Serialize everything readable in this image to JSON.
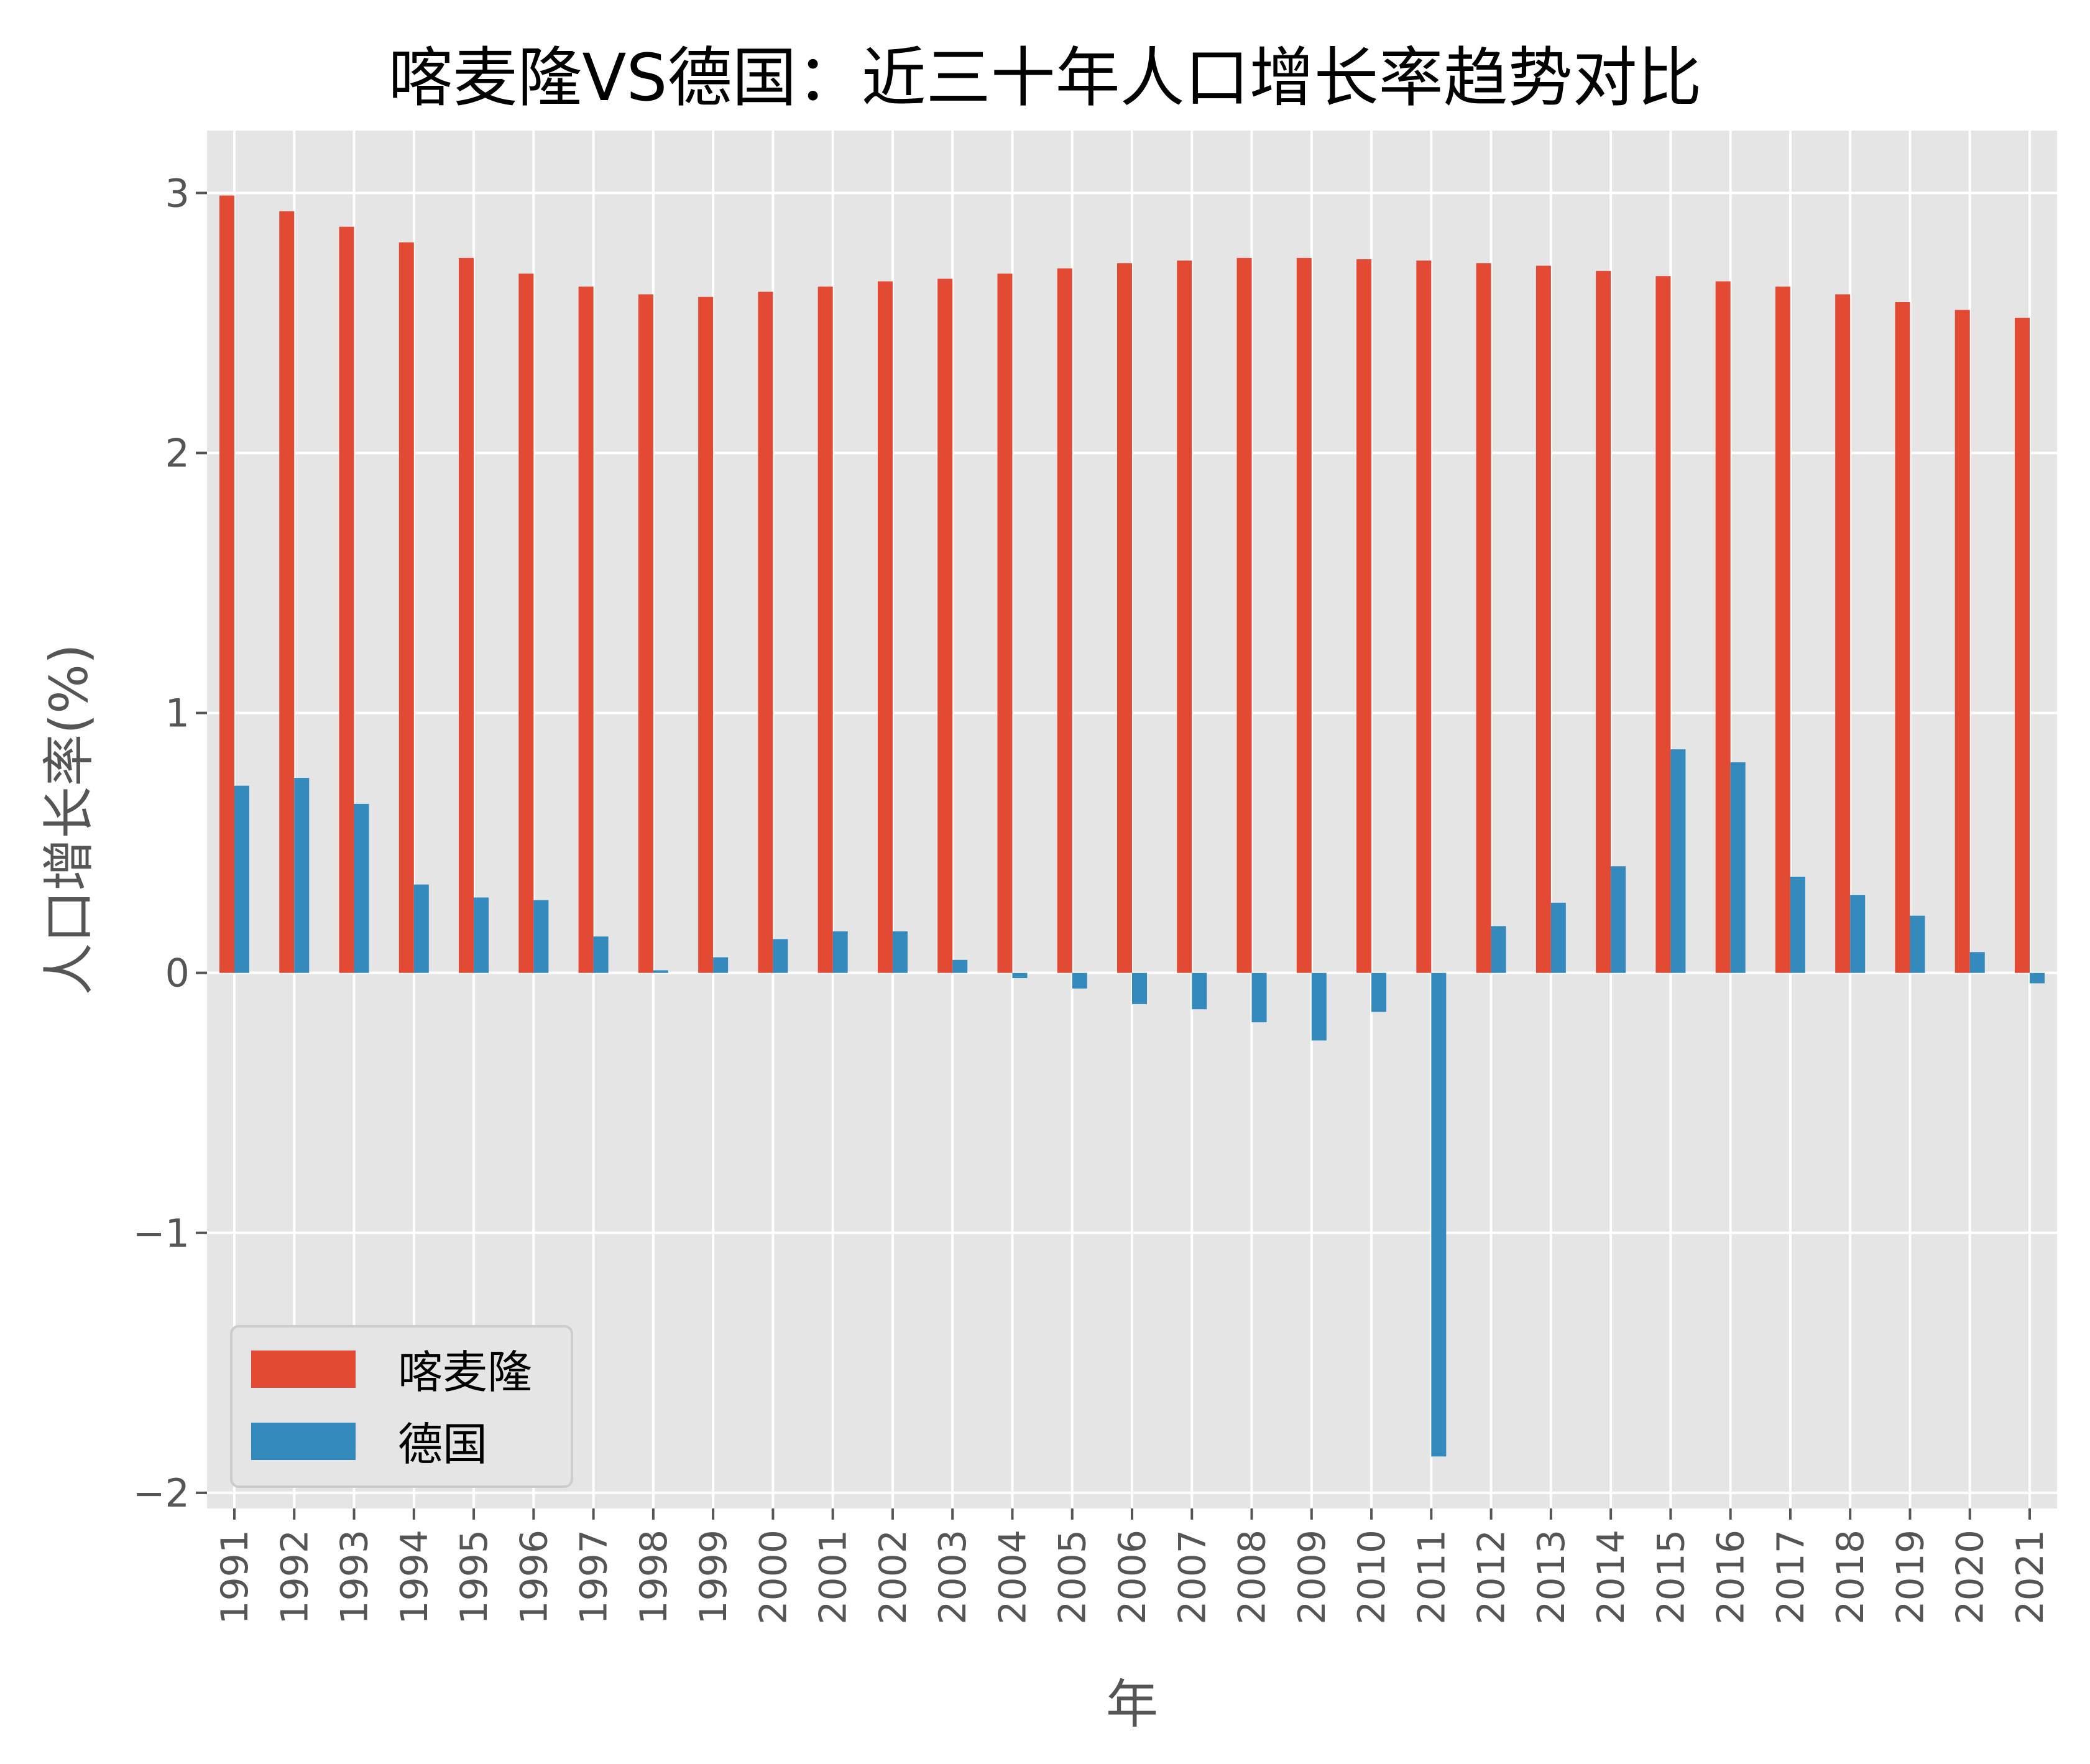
{
  "chart_data": {
    "type": "bar",
    "title": "喀麦隆VS德国：近三十年人口增长率趋势对比",
    "xlabel": "年",
    "ylabel": "人口增长率(%)",
    "ylim": [
      -2.06,
      3.24
    ],
    "yticks": [
      -2,
      -1,
      0,
      1,
      2,
      3
    ],
    "ytick_labels": [
      "−2",
      "−1",
      "0",
      "1",
      "2",
      "3"
    ],
    "grid": true,
    "legend_position": "lower-left",
    "categories": [
      "1991",
      "1992",
      "1993",
      "1994",
      "1995",
      "1996",
      "1997",
      "1998",
      "1999",
      "2000",
      "2001",
      "2002",
      "2003",
      "2004",
      "2005",
      "2006",
      "2007",
      "2008",
      "2009",
      "2010",
      "2011",
      "2012",
      "2013",
      "2014",
      "2015",
      "2016",
      "2017",
      "2018",
      "2019",
      "2020",
      "2021"
    ],
    "series": [
      {
        "name": "喀麦隆",
        "color": "#E24A33",
        "values": [
          2.99,
          2.93,
          2.87,
          2.81,
          2.75,
          2.69,
          2.64,
          2.61,
          2.6,
          2.62,
          2.64,
          2.66,
          2.67,
          2.69,
          2.71,
          2.73,
          2.74,
          2.75,
          2.75,
          2.745,
          2.74,
          2.73,
          2.72,
          2.7,
          2.68,
          2.66,
          2.64,
          2.61,
          2.58,
          2.55,
          2.52
        ]
      },
      {
        "name": "德国",
        "color": "#348ABD",
        "values": [
          0.72,
          0.75,
          0.65,
          0.34,
          0.29,
          0.28,
          0.14,
          0.01,
          0.06,
          0.13,
          0.16,
          0.16,
          0.05,
          -0.02,
          -0.06,
          -0.12,
          -0.14,
          -0.19,
          -0.26,
          -0.15,
          -1.86,
          0.18,
          0.27,
          0.41,
          0.86,
          0.81,
          0.37,
          0.3,
          0.22,
          0.08,
          -0.04
        ]
      }
    ]
  },
  "colors": {
    "plot_bg": "#E5E5E5",
    "grid": "#FFFFFF",
    "tick_text": "#555555",
    "label_text": "#555555"
  }
}
